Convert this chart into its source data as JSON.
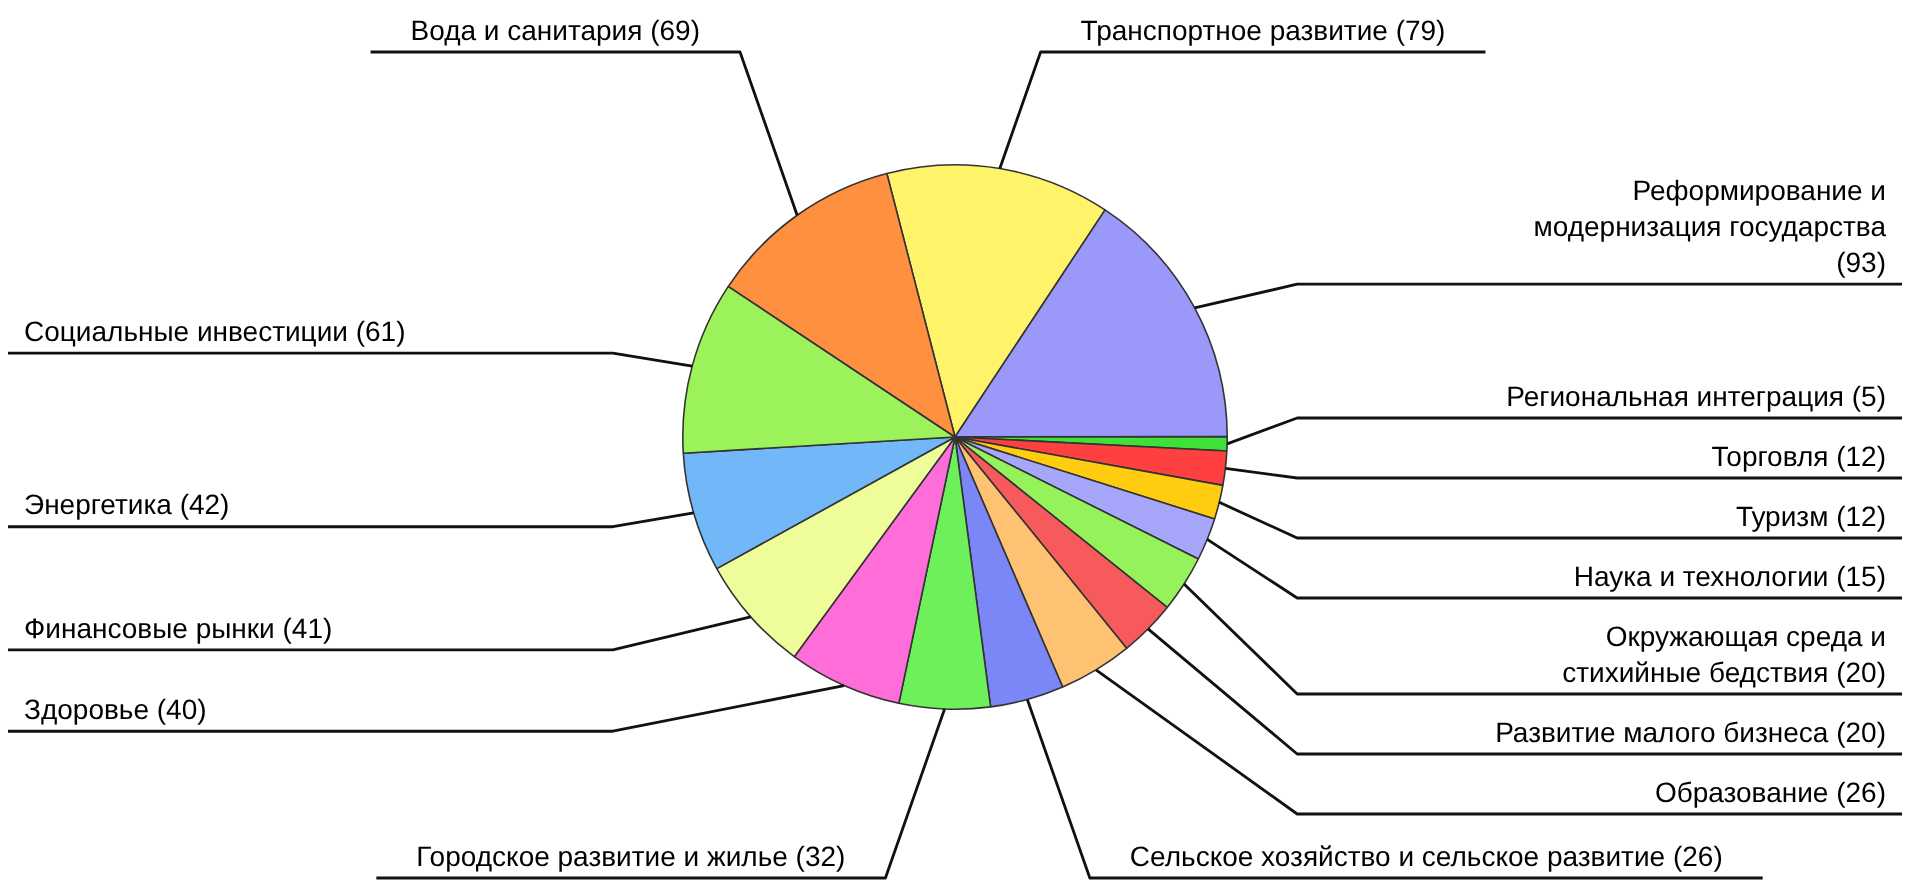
{
  "chart_data": {
    "type": "pie",
    "categories": [
      "Транспортное развитие",
      "Реформирование и модернизация государства",
      "Региональная интеграция",
      "Торговля",
      "Туризм",
      "Наука и технологии",
      "Окружающая среда и стихийные бедствия",
      "Развитие малого бизнеса",
      "Образование",
      "Сельское хозяйство и сельское развитие",
      "Городское развитие и жилье",
      "Здоровье",
      "Финансовые рынки",
      "Энергетика",
      "Социальные инвестиции",
      "Вода и санитария"
    ],
    "values": [
      79,
      93,
      5,
      12,
      12,
      15,
      20,
      20,
      26,
      26,
      32,
      40,
      41,
      42,
      61,
      69
    ],
    "colors": [
      "#fff36a",
      "#9a98f8",
      "#3fe03a",
      "#ff4040",
      "#ffcc10",
      "#a6a6fa",
      "#96f25a",
      "#f75a5a",
      "#ffc273",
      "#7b86f7",
      "#6ef05a",
      "#ff6ed8",
      "#effc9a",
      "#72b8f8",
      "#9cf25a",
      "#ff9040"
    ],
    "value_labels": [
      "(79)",
      "(93)",
      "(5)",
      "(12)",
      "(12)",
      "(15)",
      "(20)",
      "(20)",
      "(26)",
      "(26)",
      "(32)",
      "(40)",
      "(41)",
      "(42)",
      "(61)",
      "(69)"
    ],
    "legend": false
  }
}
